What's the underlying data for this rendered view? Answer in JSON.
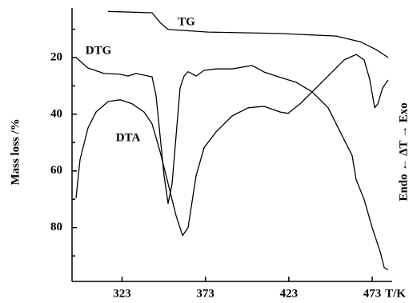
{
  "chart_data": {
    "type": "line",
    "x_label": "T/K",
    "y_label": "Mass loss /%",
    "y2_label": "Endo ← ΔT → Exo",
    "xlim": [
      293,
      485
    ],
    "xticks": [
      323,
      373,
      423,
      473
    ],
    "ylim": [
      99,
      2.5
    ],
    "yticks": [
      20,
      40,
      60,
      80
    ],
    "y_minor_ticks": [
      10,
      30,
      50,
      70,
      90
    ],
    "color": "#000000",
    "series": [
      {
        "name": "TG",
        "x": [
          314.6,
          341,
          345.8,
          350.6,
          374.6,
          418,
          451.4,
          465.8,
          475.4,
          482.6
        ],
        "values": [
          3.7,
          4.2,
          7.6,
          10.1,
          11,
          11.5,
          12.4,
          14.4,
          17.2,
          20
        ]
      },
      {
        "name": "DTG",
        "x": [
          295.4,
          302.6,
          312.2,
          321.8,
          326.6,
          331.4,
          336.2,
          341,
          343.4,
          345.8,
          348.2,
          350.6,
          353,
          355.4,
          357.8,
          360.2,
          362.6,
          367.4,
          372.2,
          379.4,
          389,
          401,
          408.2,
          417.8,
          427.4,
          437,
          446.6,
          456.2,
          461,
          463.4,
          468.2,
          473,
          477.8,
          480.2,
          482.6
        ],
        "values": [
          20,
          23.7,
          25.6,
          25.9,
          26.5,
          25.6,
          26.2,
          26.8,
          33.5,
          47.6,
          61.7,
          71.5,
          64.5,
          47.6,
          30.7,
          26.5,
          25,
          26.5,
          24.5,
          24,
          24,
          22.8,
          25.1,
          27,
          28.7,
          32.1,
          37.7,
          49,
          54.6,
          63.1,
          70.1,
          80,
          88.5,
          94.1,
          94.9
        ]
      },
      {
        "name": "DTA",
        "x": [
          295.4,
          297.8,
          302.6,
          307.4,
          314.6,
          321.8,
          329,
          336.2,
          341,
          345.8,
          350.6,
          355.4,
          359.3,
          362.6,
          367.4,
          372.2,
          379.4,
          389,
          398.6,
          408.2,
          417.8,
          422.6,
          429.8,
          437,
          446.6,
          456.2,
          463.4,
          468.2,
          471.6,
          474.5,
          476.4,
          479.3,
          482.6
        ],
        "values": [
          69.6,
          56,
          44.8,
          39.2,
          35.5,
          34.9,
          36.3,
          39.2,
          43.4,
          53.2,
          64.5,
          75.8,
          82.8,
          80,
          61.7,
          51.8,
          46.2,
          40.6,
          37.7,
          37.2,
          39.2,
          39.7,
          36.3,
          32.1,
          26.5,
          20.8,
          18.9,
          20.8,
          27.9,
          37.7,
          36.3,
          30.7,
          27.9
        ]
      }
    ]
  }
}
